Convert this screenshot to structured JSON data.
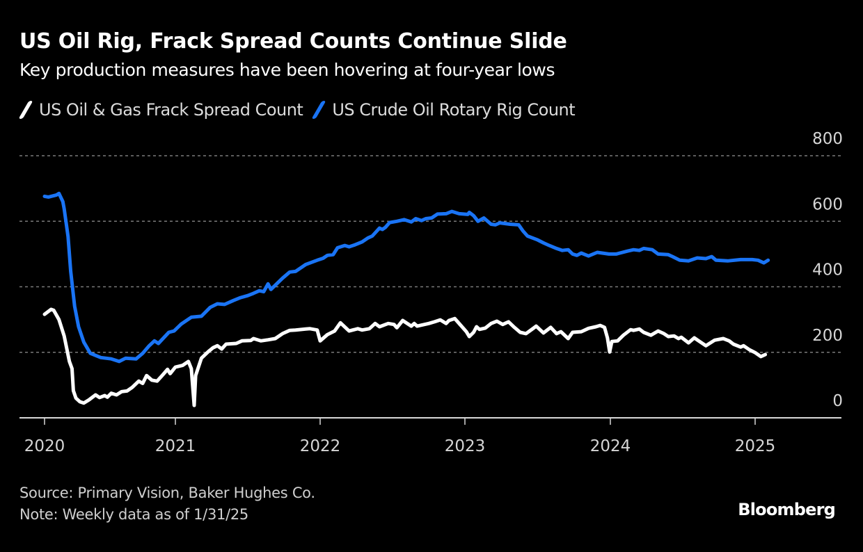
{
  "header": {
    "title": "US Oil Rig, Frack Spread Counts Continue Slide",
    "subtitle": "Key production measures have been hovering at four-year lows"
  },
  "legend": [
    {
      "label": "US Oil & Gas Frack Spread Count",
      "color": "#ffffff"
    },
    {
      "label": "US Crude Oil Rotary Rig Count",
      "color": "#1a74f5"
    }
  ],
  "footer": {
    "source": "Source: Primary Vision, Baker Hughes Co.",
    "note": "Note: Weekly data as of 1/31/25",
    "brand": "Bloomberg"
  },
  "colors": {
    "background": "#000000",
    "frack": "#ffffff",
    "rigs": "#1a74f5",
    "grid": "#7a7a7a",
    "axis": "#d9d9d9"
  },
  "chart_data": {
    "type": "line",
    "title": "US Oil Rig, Frack Spread Counts Continue Slide",
    "subtitle": "Key production measures have been hovering at four-year lows",
    "xlabel": "",
    "ylabel": "",
    "x_unit": "decimal year",
    "xlim": [
      2019.83,
      2025.6
    ],
    "ylim": [
      0,
      800
    ],
    "yticks": [
      0,
      200,
      400,
      600,
      800
    ],
    "ytick_labels": [
      "0",
      "200",
      "400",
      "600",
      "800"
    ],
    "xticks": [
      2020,
      2021,
      2022,
      2023,
      2024,
      2025
    ],
    "xtick_labels": [
      "2020",
      "2021",
      "2022",
      "2023",
      "2024",
      "2025"
    ],
    "grid": "horizontal dotted",
    "legend_position": "top-left",
    "y_axis_side": "right",
    "series": [
      {
        "name": "US Oil & Gas Frack Spread Count",
        "color": "#ffffff",
        "x": [
          2020.0,
          2020.05,
          2020.07,
          2020.11,
          2020.15,
          2020.19,
          2020.21,
          2020.22,
          2020.24,
          2020.27,
          2020.3,
          2020.34,
          2020.39,
          2020.42,
          2020.46,
          2020.48,
          2020.51,
          2020.55,
          2020.59,
          2020.63,
          2020.67,
          2020.72,
          2020.75,
          2020.78,
          2020.82,
          2020.86,
          2020.89,
          2020.94,
          2020.96,
          2021.0,
          2021.05,
          2021.09,
          2021.11,
          2021.13,
          2021.14,
          2021.18,
          2021.23,
          2021.26,
          2021.29,
          2021.32,
          2021.35,
          2021.42,
          2021.46,
          2021.52,
          2021.54,
          2021.59,
          2021.64,
          2021.69,
          2021.74,
          2021.79,
          2021.83,
          2021.9,
          2021.93,
          2021.98,
          2022.0,
          2022.05,
          2022.1,
          2022.14,
          2022.2,
          2022.26,
          2022.29,
          2022.34,
          2022.38,
          2022.41,
          2022.47,
          2022.51,
          2022.53,
          2022.57,
          2022.63,
          2022.65,
          2022.67,
          2022.75,
          2022.79,
          2022.83,
          2022.87,
          2022.89,
          2022.93,
          2022.96,
          2023.01,
          2023.03,
          2023.06,
          2023.08,
          2023.1,
          2023.14,
          2023.18,
          2023.22,
          2023.26,
          2023.3,
          2023.34,
          2023.38,
          2023.42,
          2023.47,
          2023.49,
          2023.54,
          2023.59,
          2023.63,
          2023.66,
          2023.71,
          2023.74,
          2023.8,
          2023.85,
          2023.9,
          2023.93,
          2023.96,
          2023.98,
          2023.995,
          2024.01,
          2024.05,
          2024.09,
          2024.14,
          2024.16,
          2024.2,
          2024.23,
          2024.28,
          2024.33,
          2024.37,
          2024.4,
          2024.44,
          2024.47,
          2024.49,
          2024.54,
          2024.58,
          2024.61,
          2024.66,
          2024.72,
          2024.78,
          2024.82,
          2024.85,
          2024.9,
          2024.92,
          2024.96,
          2025.0,
          2025.04,
          2025.07
        ],
        "values": [
          316,
          331,
          328,
          300,
          250,
          172,
          150,
          83,
          60,
          49,
          45,
          55,
          70,
          62,
          68,
          63,
          75,
          70,
          80,
          82,
          93,
          112,
          105,
          129,
          115,
          112,
          125,
          148,
          135,
          155,
          160,
          172,
          150,
          38,
          129,
          182,
          203,
          214,
          220,
          210,
          225,
          227,
          235,
          236,
          242,
          235,
          238,
          242,
          257,
          267,
          268,
          271,
          272,
          268,
          235,
          254,
          265,
          290,
          265,
          272,
          268,
          272,
          288,
          278,
          288,
          285,
          275,
          297,
          280,
          288,
          280,
          288,
          293,
          299,
          288,
          297,
          303,
          288,
          263,
          248,
          261,
          278,
          270,
          274,
          288,
          295,
          285,
          293,
          276,
          261,
          257,
          273,
          280,
          259,
          276,
          257,
          263,
          242,
          261,
          263,
          273,
          278,
          282,
          276,
          244,
          201,
          233,
          235,
          252,
          269,
          267,
          271,
          261,
          252,
          265,
          257,
          248,
          250,
          242,
          246,
          229,
          244,
          235,
          220,
          237,
          242,
          235,
          225,
          216,
          220,
          208,
          199,
          187,
          193
        ]
      },
      {
        "name": "US Crude Oil Rotary Rig Count",
        "color": "#1a74f5",
        "x": [
          2020.0,
          2020.03,
          2020.09,
          2020.11,
          2020.14,
          2020.15,
          2020.18,
          2020.2,
          2020.23,
          2020.26,
          2020.3,
          2020.35,
          2020.43,
          2020.51,
          2020.57,
          2020.62,
          2020.7,
          2020.75,
          2020.8,
          2020.84,
          2020.87,
          2020.95,
          2020.99,
          2021.04,
          2021.11,
          2021.18,
          2021.24,
          2021.29,
          2021.34,
          2021.4,
          2021.45,
          2021.5,
          2021.54,
          2021.58,
          2021.61,
          2021.64,
          2021.66,
          2021.74,
          2021.79,
          2021.83,
          2021.9,
          2021.98,
          2022.02,
          2022.05,
          2022.09,
          2022.12,
          2022.17,
          2022.2,
          2022.24,
          2022.29,
          2022.33,
          2022.36,
          2022.41,
          2022.43,
          2022.45,
          2022.48,
          2022.53,
          2022.58,
          2022.63,
          2022.66,
          2022.7,
          2022.73,
          2022.77,
          2022.81,
          2022.87,
          2022.91,
          2022.96,
          2023.02,
          2023.03,
          2023.06,
          2023.09,
          2023.13,
          2023.18,
          2023.21,
          2023.24,
          2023.31,
          2023.37,
          2023.4,
          2023.43,
          2023.5,
          2023.54,
          2023.58,
          2023.63,
          2023.67,
          2023.71,
          2023.74,
          2023.77,
          2023.8,
          2023.85,
          2023.91,
          2023.99,
          2024.04,
          2024.12,
          2024.16,
          2024.2,
          2024.23,
          2024.29,
          2024.33,
          2024.4,
          2024.43,
          2024.48,
          2024.54,
          2024.6,
          2024.66,
          2024.7,
          2024.73,
          2024.81,
          2024.9,
          2024.98,
          2025.02,
          2025.06,
          2025.09
        ],
        "values": [
          676,
          674,
          680,
          685,
          660,
          638,
          553,
          447,
          341,
          278,
          231,
          197,
          184,
          180,
          172,
          182,
          180,
          197,
          220,
          235,
          227,
          261,
          265,
          286,
          307,
          310,
          337,
          348,
          346,
          358,
          367,
          373,
          380,
          388,
          385,
          409,
          392,
          426,
          445,
          447,
          468,
          481,
          487,
          496,
          498,
          519,
          526,
          522,
          528,
          537,
          549,
          555,
          579,
          575,
          581,
          596,
          600,
          605,
          598,
          608,
          602,
          608,
          610,
          622,
          623,
          630,
          623,
          621,
          627,
          617,
          600,
          610,
          591,
          589,
          595,
          591,
          589,
          570,
          555,
          543,
          534,
          526,
          517,
          511,
          513,
          500,
          496,
          503,
          494,
          505,
          500,
          500,
          509,
          513,
          511,
          517,
          513,
          500,
          498,
          492,
          481,
          479,
          488,
          486,
          492,
          481,
          479,
          483,
          483,
          481,
          473,
          481
        ]
      }
    ]
  }
}
